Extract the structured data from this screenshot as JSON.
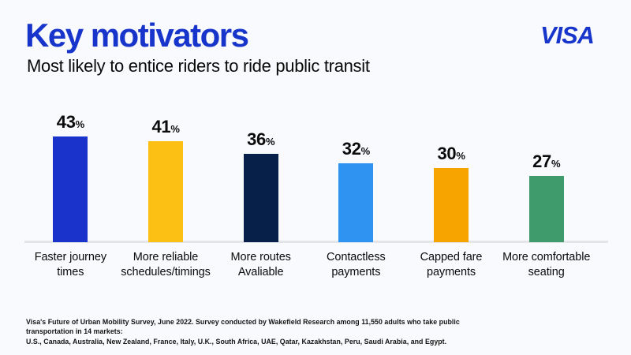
{
  "page": {
    "title": "Key motivators",
    "subtitle": "Most likely to entice riders to ride public transit",
    "brand": "VISA",
    "footnote_line1": "Visa's Future of Urban Mobility Survey, June 2022. Survey conducted by Wakefield Research among 11,550 adults who take public transportation in 14 markets:",
    "footnote_line2": "U.S., Canada, Australia, New Zealand, France, Italy, U.K., South Africa, UAE, Qatar, Kazakhstan, Peru, Saudi Arabia, and Egypt."
  },
  "colors": {
    "title_blue": "#1734CB",
    "background": "#F9FAFD",
    "axis_line": "#E3E5E9"
  },
  "chart_data": {
    "type": "bar",
    "title": "Key motivators",
    "subtitle": "Most likely to entice riders to ride public transit",
    "categories": [
      "Faster journey\ntimes",
      "More reliable\nschedules/timings",
      "More routes\nAvaliable",
      "Contactless\npayments",
      "Capped fare\npayments",
      "More comfortable\nseating"
    ],
    "values": [
      43,
      41,
      36,
      32,
      30,
      27
    ],
    "unit": "%",
    "bar_colors": [
      "#1A34CB",
      "#FCC014",
      "#07204A",
      "#2E93F1",
      "#F7A300",
      "#3F9A6C"
    ],
    "ylim": [
      0,
      45
    ],
    "grid": false,
    "legend": "none",
    "value_labels": "above-bars",
    "source": "Visa's Future of Urban Mobility Survey, June 2022"
  }
}
